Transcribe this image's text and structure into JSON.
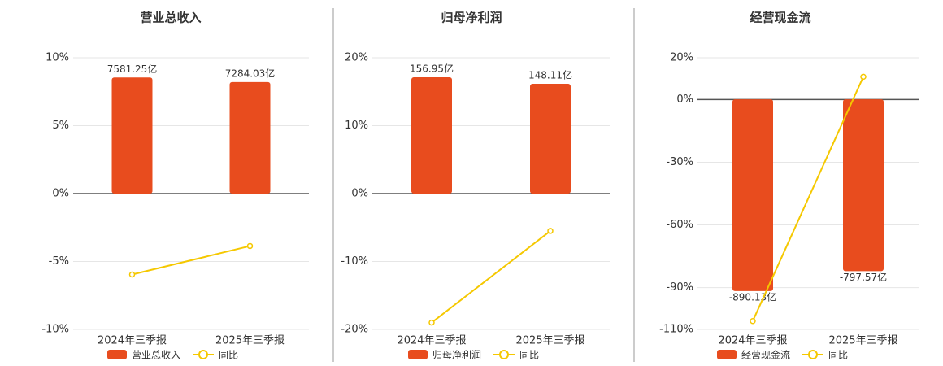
{
  "chart_data": [
    {
      "type": "bar-line",
      "title": "营业总收入",
      "categories": [
        "2024年三季报",
        "2025年三季报"
      ],
      "series": [
        {
          "name": "营业总收入",
          "color": "#e84c1e",
          "axis": "y2",
          "values": [
            7581.25,
            7284.03
          ],
          "value_labels": [
            "7581.25亿",
            "7284.03亿"
          ]
        },
        {
          "name": "同比",
          "color": "#f5c800",
          "values": [
            -5.96,
            -3.86
          ]
        }
      ],
      "ylim": [
        -10,
        10
      ],
      "yticks": [
        {
          "value": -10,
          "label": "-10%"
        },
        {
          "value": -5,
          "label": "-5%"
        },
        {
          "value": 0,
          "label": "0%"
        },
        {
          "value": 5,
          "label": "5%"
        },
        {
          "value": 10,
          "label": "10%"
        }
      ],
      "y2lim": [
        -8870,
        8870
      ],
      "grid": true
    },
    {
      "type": "bar-line",
      "title": "归母净利润",
      "categories": [
        "2024年三季报",
        "2025年三季报"
      ],
      "series": [
        {
          "name": "归母净利润",
          "color": "#e84c1e",
          "axis": "y2",
          "values": [
            156.95,
            148.11
          ],
          "value_labels": [
            "156.95亿",
            "148.11亿"
          ]
        },
        {
          "name": "同比",
          "color": "#f5c800",
          "values": [
            -19.0,
            -5.5
          ]
        }
      ],
      "ylim": [
        -20,
        20
      ],
      "yticks": [
        {
          "value": -20,
          "label": "-20%"
        },
        {
          "value": -10,
          "label": "-10%"
        },
        {
          "value": 0,
          "label": "0%"
        },
        {
          "value": 10,
          "label": "10%"
        },
        {
          "value": 20,
          "label": "20%"
        }
      ],
      "y2lim": [
        -183.3,
        183.3
      ],
      "grid": true
    },
    {
      "type": "bar-line",
      "title": "经营现金流",
      "categories": [
        "2024年三季报",
        "2025年三季报"
      ],
      "series": [
        {
          "name": "经营现金流",
          "color": "#e84c1e",
          "axis": "y2",
          "values": [
            -890.13,
            -797.57
          ],
          "value_labels": [
            "-890.13亿",
            "-797.57亿"
          ]
        },
        {
          "name": "同比",
          "color": "#f5c800",
          "values": [
            -106,
            10.9
          ]
        }
      ],
      "ylim": [
        -110,
        20
      ],
      "yticks": [
        {
          "value": -110,
          "label": "-110%"
        },
        {
          "value": -90,
          "label": "-90%"
        },
        {
          "value": -60,
          "label": "-60%"
        },
        {
          "value": -30,
          "label": "-30%"
        },
        {
          "value": 0,
          "label": "0%"
        },
        {
          "value": 20,
          "label": "20%"
        }
      ],
      "y2lim": [
        -1068,
        193
      ],
      "grid": true
    }
  ]
}
